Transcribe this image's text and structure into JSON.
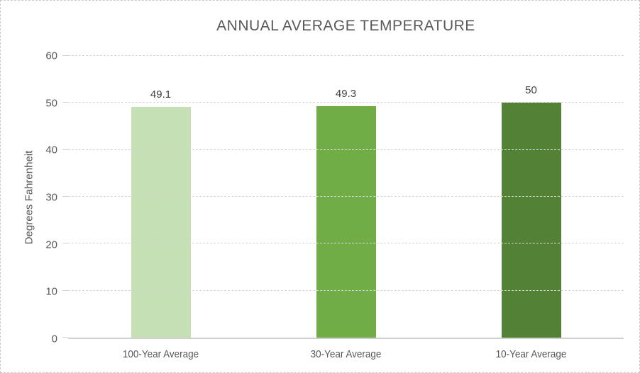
{
  "chart_data": {
    "type": "bar",
    "title": "ANNUAL AVERAGE TEMPERATURE",
    "xlabel": "",
    "ylabel": "Degrees Fahrenheit",
    "categories": [
      "100-Year Average",
      "30-Year Average",
      "10-Year Average"
    ],
    "values": [
      49.1,
      49.3,
      50
    ],
    "data_labels": [
      "49.1",
      "49.3",
      "50"
    ],
    "bar_colors": [
      "#c5e0b4",
      "#70ad47",
      "#538135"
    ],
    "ylim": [
      0,
      60
    ],
    "yticks": [
      0,
      10,
      20,
      30,
      40,
      50,
      60
    ],
    "grid": true,
    "legend_position": "none"
  },
  "style": {
    "title_color": "#595959",
    "axis_text_color": "#595959",
    "data_label_color": "#404040",
    "gridline_color": "#d6d6d6",
    "axis_line_color": "#cfcfcf",
    "chart_border_color": "#c9c9c9",
    "background": "#ffffff"
  }
}
